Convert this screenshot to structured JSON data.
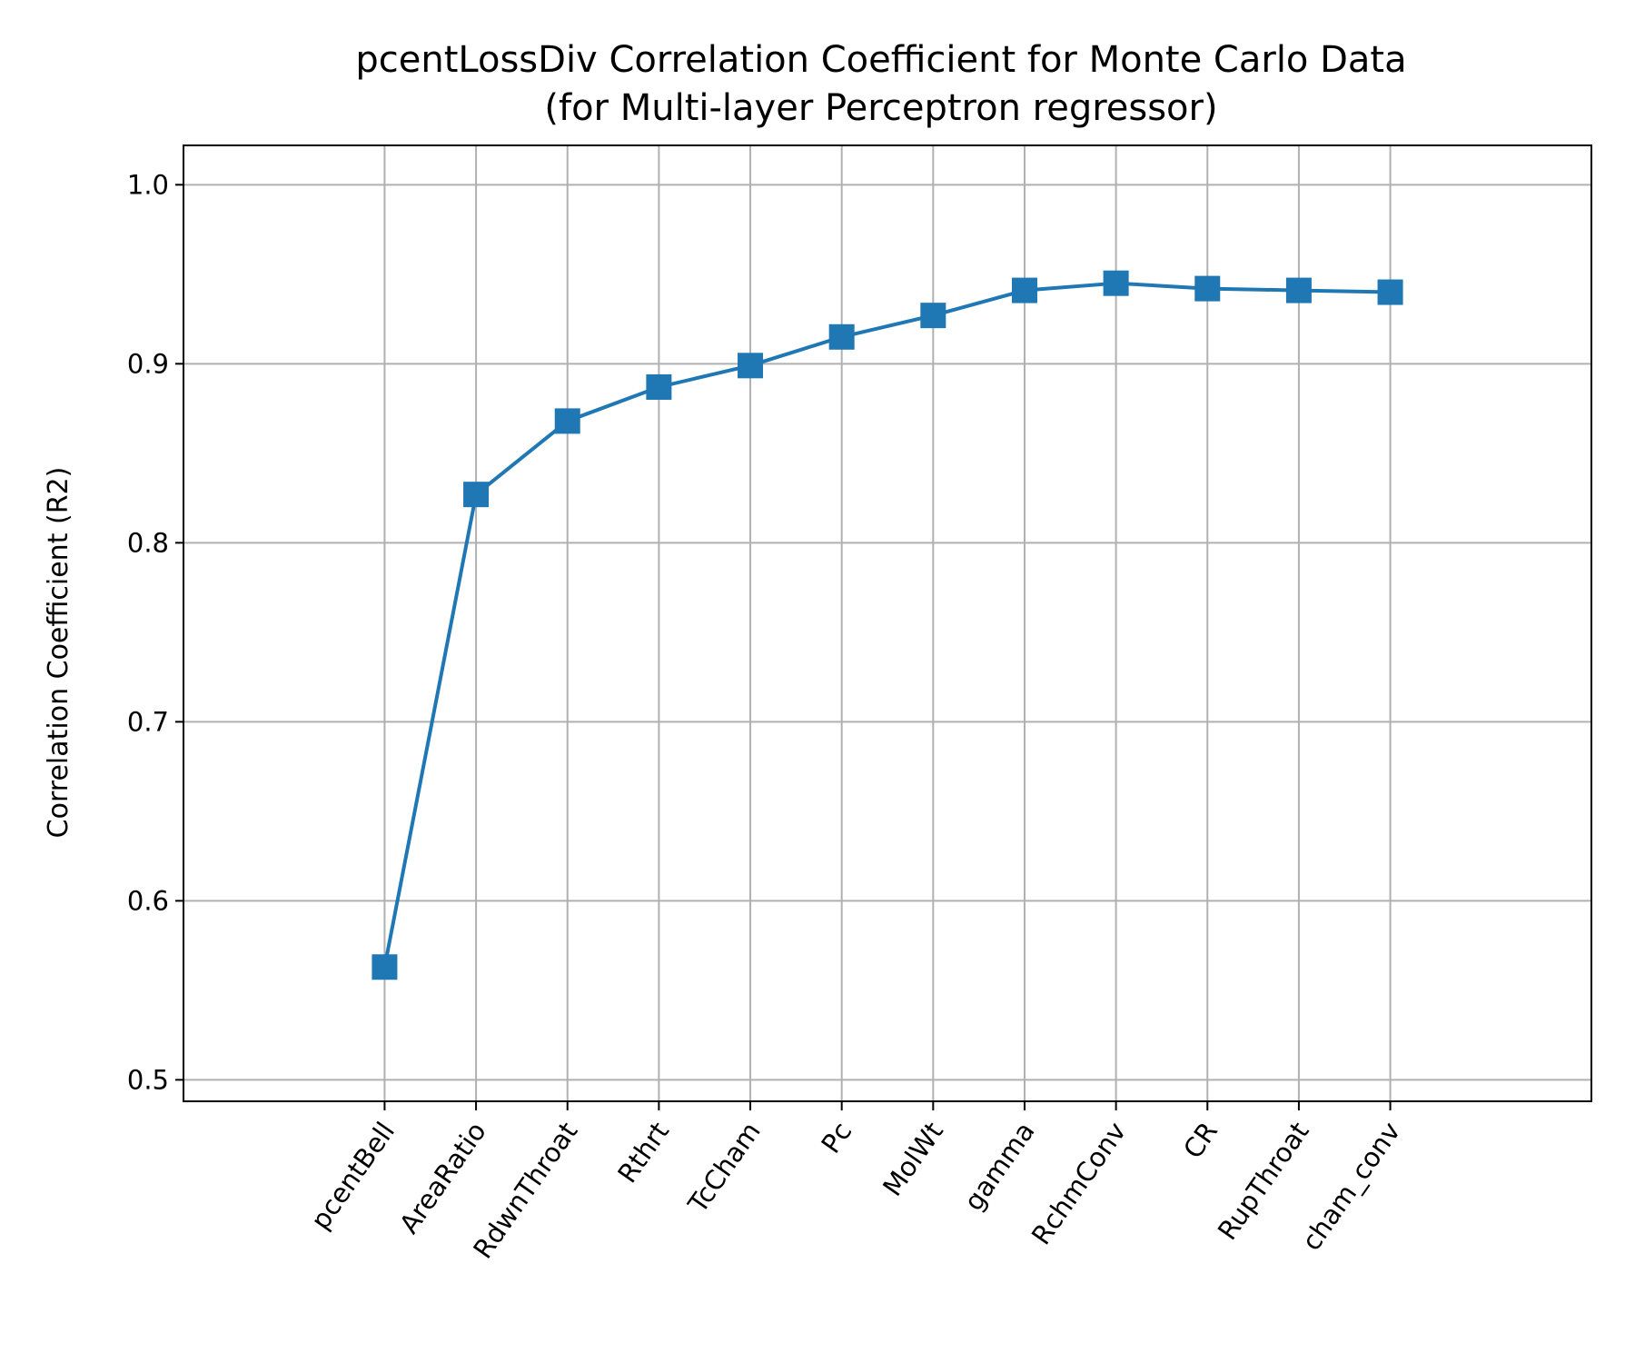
{
  "chart_data": {
    "type": "line",
    "title": "pcentLossDiv Correlation Coefficient for Monte Carlo Data",
    "subtitle": "(for Multi-layer Perceptron regressor)",
    "xlabel": "",
    "ylabel": "Correlation Coefficient (R2)",
    "categories": [
      "pcentBell",
      "AreaRatio",
      "RdwnThroat",
      "Rthrt",
      "TcCham",
      "Pc",
      "MolWt",
      "gamma",
      "RchmConv",
      "CR",
      "RupThroat",
      "cham_conv"
    ],
    "x_range": [
      -2.2,
      13.2
    ],
    "y_ticks": [
      "0.5",
      "0.6",
      "0.7",
      "0.8",
      "0.9",
      "1.0"
    ],
    "ylim": [
      0.488,
      1.022
    ],
    "grid": true,
    "marker": "square",
    "series": [
      {
        "values": [
          0.563,
          0.827,
          0.868,
          0.887,
          0.899,
          0.915,
          0.927,
          0.941,
          0.945,
          0.942,
          0.941,
          0.94
        ],
        "color": "#1f77b4"
      }
    ]
  }
}
